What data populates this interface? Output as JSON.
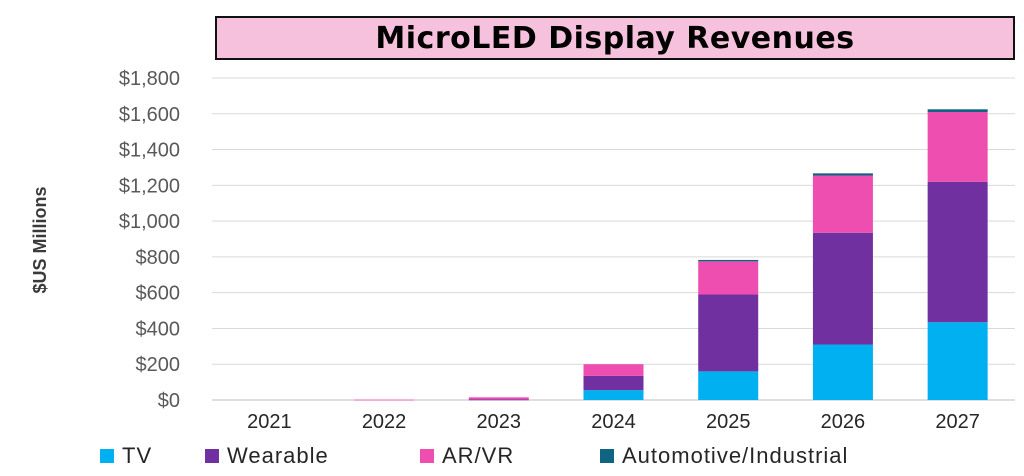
{
  "chart_data": {
    "type": "bar",
    "stacked": true,
    "title": "MicroLED Display Revenues",
    "xlabel": "",
    "ylabel": "$US Millions",
    "categories": [
      "2021",
      "2022",
      "2023",
      "2024",
      "2025",
      "2026",
      "2027"
    ],
    "ylim": [
      0,
      1800
    ],
    "yticks": [
      0,
      200,
      400,
      600,
      800,
      1000,
      1200,
      1400,
      1600,
      1800
    ],
    "ytick_labels": [
      "$0",
      "$200",
      "$400",
      "$600",
      "$800",
      "$1,000",
      "$1,200",
      "$1,400",
      "$1,600",
      "$1,800"
    ],
    "grid": true,
    "legend_position": "bottom",
    "series": [
      {
        "name": "TV",
        "color": "#00b0f0",
        "values": [
          0,
          0,
          0,
          55,
          160,
          310,
          435
        ]
      },
      {
        "name": "Wearable",
        "color": "#7030a0",
        "values": [
          0,
          0,
          3,
          80,
          430,
          625,
          785
        ]
      },
      {
        "name": "AR/VR",
        "color": "#ee4eb0",
        "values": [
          0,
          2,
          12,
          65,
          185,
          320,
          390
        ]
      },
      {
        "name": "Automotive/Industrial",
        "color": "#0e6481",
        "values": [
          0,
          0,
          0,
          0,
          8,
          12,
          15
        ]
      }
    ]
  }
}
